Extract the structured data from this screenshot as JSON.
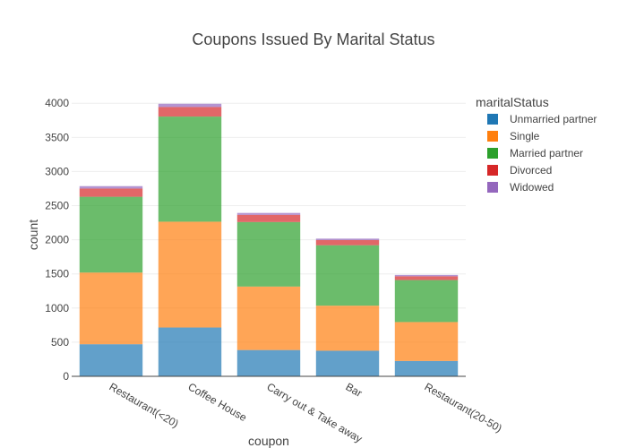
{
  "chart_data": {
    "type": "bar",
    "stacked": true,
    "title": "Coupons Issued By Marital Status",
    "xlabel": "coupon",
    "ylabel": "count",
    "categories": [
      "Restaurant(<20)",
      "Coffee House",
      "Carry out & Take away",
      "Bar",
      "Restaurant(20-50)"
    ],
    "ylim": [
      0,
      4200
    ],
    "yticks": [
      0,
      500,
      1000,
      1500,
      2000,
      2500,
      3000,
      3500,
      4000
    ],
    "grid": true,
    "legend": {
      "title": "maritalStatus",
      "placement": "right"
    },
    "series": [
      {
        "name": "Unmarried partner",
        "color": "#1f77b4",
        "values": [
          470,
          715,
          385,
          375,
          225
        ]
      },
      {
        "name": "Single",
        "color": "#ff7f0e",
        "values": [
          1050,
          1550,
          930,
          660,
          570
        ]
      },
      {
        "name": "Married partner",
        "color": "#2ca02c",
        "values": [
          1110,
          1540,
          945,
          885,
          615
        ]
      },
      {
        "name": "Divorced",
        "color": "#d62728",
        "values": [
          120,
          140,
          105,
          75,
          55
        ]
      },
      {
        "name": "Widowed",
        "color": "#9467bd",
        "values": [
          36,
          48,
          28,
          22,
          20
        ]
      }
    ]
  }
}
